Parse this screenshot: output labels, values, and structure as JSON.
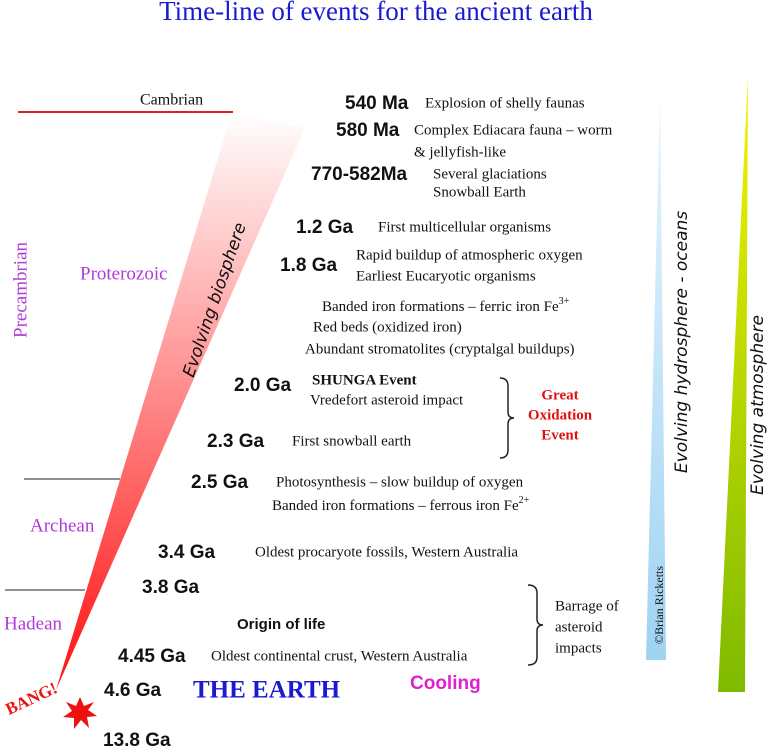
{
  "title": "Time-line of events for the ancient earth",
  "eras": {
    "cambrian": "Cambrian",
    "precambrian": "Precambrian",
    "proterozoic": "Proterozoic",
    "archean": "Archean",
    "hadean": "Hadean"
  },
  "bang": "BANG!",
  "wedges": {
    "biosphere": "Evolving biosphere",
    "hydrosphere": "Evolving hydrosphere - oceans",
    "atmosphere": "Evolving atmosphere"
  },
  "credit": "©Brian Ricketts",
  "events": [
    {
      "age": "540 Ma",
      "lines": [
        "Explosion of shelly faunas"
      ]
    },
    {
      "age": "580 Ma",
      "lines": [
        "Complex Ediacara fauna – worm",
        "& jellyfish-like"
      ]
    },
    {
      "age": "770-582Ma",
      "lines": [
        "Several glaciations",
        "Snowball Earth"
      ]
    },
    {
      "age": "1.2 Ga",
      "lines": [
        "First multicellular organisms"
      ]
    },
    {
      "age": "1.8 Ga",
      "lines": [
        "Rapid buildup of atmospheric oxygen",
        "Earliest Eucaryotic organisms"
      ]
    },
    {
      "age": "2.0 Ga",
      "lines": [
        "SHUNGA Event",
        "Vredefort asteroid impact"
      ]
    },
    {
      "age": "2.3 Ga",
      "lines": [
        "First snowball earth"
      ]
    },
    {
      "age": "2.5 Ga",
      "lines": [
        "Photosynthesis – slow buildup of oxygen"
      ]
    },
    {
      "age": "3.4 Ga",
      "lines": [
        "Oldest procaryote fossils, Western Australia"
      ]
    },
    {
      "age": "3.8 Ga"
    },
    {
      "age": "4.45 Ga",
      "lines": [
        "Oldest continental crust, Western Australia"
      ]
    },
    {
      "age": "4.6 Ga",
      "lines": [
        "THE EARTH"
      ]
    },
    {
      "age": "13.8 Ga"
    }
  ],
  "iron_notes": {
    "ferric": {
      "text": "Banded iron formations –  ferric iron Fe",
      "sup": "3+"
    },
    "red_beds": "Red beds (oxidized iron)",
    "stromatolites": "Abundant stromatolites (cryptalgal buildups)",
    "ferrous": {
      "text": "Banded iron formations –  ferrous iron Fe",
      "sup": "2+"
    }
  },
  "great_oxidation": [
    "Great",
    "Oxidation",
    "Event"
  ],
  "origin": "Origin of life",
  "cooling": "Cooling",
  "barrage": [
    "Barrage of",
    "asteroid",
    "impacts"
  ]
}
